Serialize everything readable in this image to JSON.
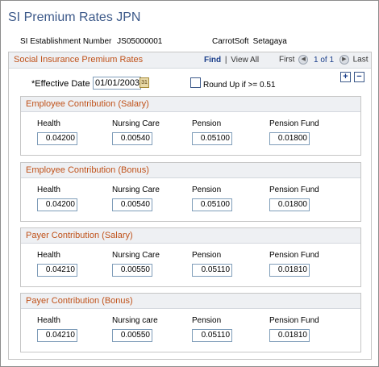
{
  "page": {
    "title": "SI Premium Rates JPN"
  },
  "establishment": {
    "label": "SI Establishment Number",
    "value": "JS05000001"
  },
  "company": {
    "name": "CarrotSoft",
    "location": "Setagaya"
  },
  "section": {
    "title": "Social Insurance Premium Rates",
    "find": "Find",
    "separator": "|",
    "view_all": "View All",
    "first": "First",
    "prev_icon": "◀",
    "page_info": "1 of 1",
    "next_icon": "▶",
    "last": "Last"
  },
  "effective_date": {
    "label": "*Effective Date",
    "value": "01/01/2003",
    "calendar_icon": "31"
  },
  "round_up": {
    "label": "Round Up if >= 0.51",
    "checked": false
  },
  "row_controls": {
    "add": "+",
    "delete": "−"
  },
  "groups": [
    {
      "title": "Employee Contribution (Salary)",
      "labels": [
        "Health",
        "Nursing Care",
        "Pension",
        "Pension Fund"
      ],
      "values": [
        "0.04200",
        "0.00540",
        "0.05100",
        "0.01800"
      ]
    },
    {
      "title": "Employee Contribution (Bonus)",
      "labels": [
        "Health",
        "Nursing Care",
        "Pension",
        "Pension Fund"
      ],
      "values": [
        "0.04200",
        "0.00540",
        "0.05100",
        "0.01800"
      ]
    },
    {
      "title": "Payer Contribution (Salary)",
      "labels": [
        "Health",
        "Nursing Care",
        "Pension",
        "Pension Fund"
      ],
      "values": [
        "0.04210",
        "0.00550",
        "0.05110",
        "0.01810"
      ]
    },
    {
      "title": "Payer Contribution (Bonus)",
      "labels": [
        "Health",
        "Nursing care",
        "Pension",
        "Pension Fund"
      ],
      "values": [
        "0.04210",
        "0.00550",
        "0.05110",
        "0.01810"
      ]
    }
  ],
  "colors": {
    "title": "#3d5a8a",
    "section_title": "#c0521a",
    "header_bg": "#eef0f3",
    "link": "#1a3e8a"
  }
}
